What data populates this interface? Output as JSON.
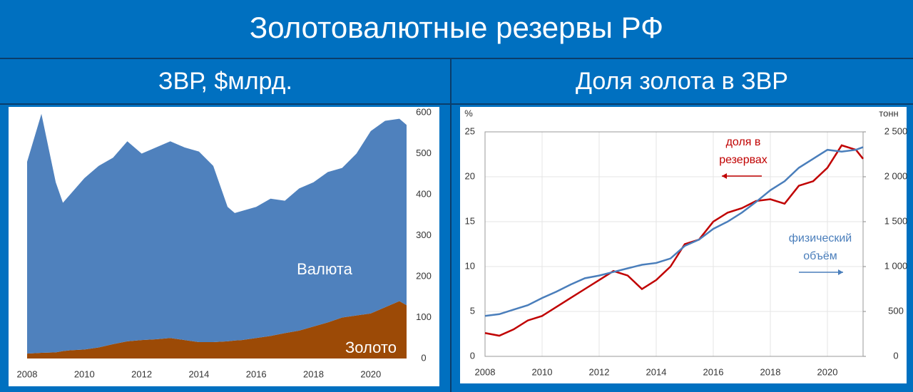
{
  "title": "Золотовалютные резервы РФ",
  "chart_data": [
    {
      "type": "area",
      "title": "ЗВР, $млрд.",
      "x": [
        2008,
        2008.5,
        2009,
        2009.25,
        2009.5,
        2010,
        2010.5,
        2011,
        2011.5,
        2012,
        2012.5,
        2013,
        2013.5,
        2014,
        2014.5,
        2015,
        2015.25,
        2015.5,
        2016,
        2016.5,
        2017,
        2017.5,
        2018,
        2018.5,
        2019,
        2019.5,
        2020,
        2020.5,
        2021,
        2021.25
      ],
      "series": [
        {
          "name": "Золото",
          "color": "#9c4a06",
          "values": [
            12,
            14,
            15,
            18,
            20,
            22,
            27,
            35,
            42,
            45,
            47,
            50,
            45,
            40,
            40,
            42,
            44,
            45,
            50,
            55,
            62,
            68,
            78,
            88,
            100,
            105,
            110,
            125,
            140,
            130
          ]
        },
        {
          "name": "Валюта",
          "color": "#4f81bd",
          "values": [
            468,
            583,
            415,
            362,
            380,
            418,
            443,
            455,
            488,
            455,
            468,
            480,
            470,
            465,
            430,
            328,
            311,
            315,
            320,
            335,
            323,
            347,
            352,
            367,
            365,
            395,
            445,
            455,
            445,
            440
          ]
        }
      ],
      "xlim": [
        2008,
        2021.25
      ],
      "xticks": [
        2008,
        2010,
        2012,
        2014,
        2016,
        2018,
        2020
      ],
      "ylim": [
        0,
        600
      ],
      "yticks": [
        0,
        100,
        200,
        300,
        400,
        500,
        600
      ],
      "grid": false
    },
    {
      "type": "line",
      "title": "Доля золота в ЗВР",
      "x": [
        2008,
        2008.5,
        2009,
        2009.5,
        2010,
        2010.5,
        2011,
        2011.5,
        2012,
        2012.5,
        2013,
        2013.5,
        2014,
        2014.5,
        2015,
        2015.5,
        2016,
        2016.5,
        2017,
        2017.5,
        2018,
        2018.5,
        2019,
        2019.5,
        2020,
        2020.5,
        2021,
        2021.25
      ],
      "series": [
        {
          "name": "доля в резервах",
          "color": "#c00000",
          "values": [
            2.6,
            2.3,
            3.0,
            4.0,
            4.5,
            5.5,
            6.5,
            7.5,
            8.5,
            9.5,
            9.0,
            7.5,
            8.5,
            10.0,
            12.5,
            13.0,
            15.0,
            16.0,
            16.5,
            17.3,
            17.5,
            17.0,
            19.0,
            19.5,
            21.0,
            23.5,
            23.0,
            22.0
          ]
        },
        {
          "name": "физический объём",
          "color": "#4a7ebb",
          "axis": "y2",
          "values": [
            450,
            470,
            520,
            570,
            650,
            720,
            800,
            870,
            900,
            940,
            980,
            1020,
            1040,
            1090,
            1230,
            1300,
            1420,
            1500,
            1600,
            1720,
            1850,
            1950,
            2100,
            2200,
            2300,
            2280,
            2300,
            2330
          ]
        }
      ],
      "ylabel": "%",
      "y2label": "тонн",
      "xlim": [
        2008,
        2021.25
      ],
      "xticks": [
        2008,
        2010,
        2012,
        2014,
        2016,
        2018,
        2020
      ],
      "ylim": [
        0,
        25
      ],
      "yticks": [
        0,
        5,
        10,
        15,
        20,
        25
      ],
      "y2lim": [
        0,
        2500
      ],
      "y2ticks": [
        0,
        500,
        {
          "value": 1000,
          "label": "1 000"
        },
        {
          "value": 1500,
          "label": "1 500"
        },
        {
          "value": 2000,
          "label": "2 000"
        },
        {
          "value": 2500,
          "label": "2 500"
        }
      ],
      "grid": true
    }
  ]
}
